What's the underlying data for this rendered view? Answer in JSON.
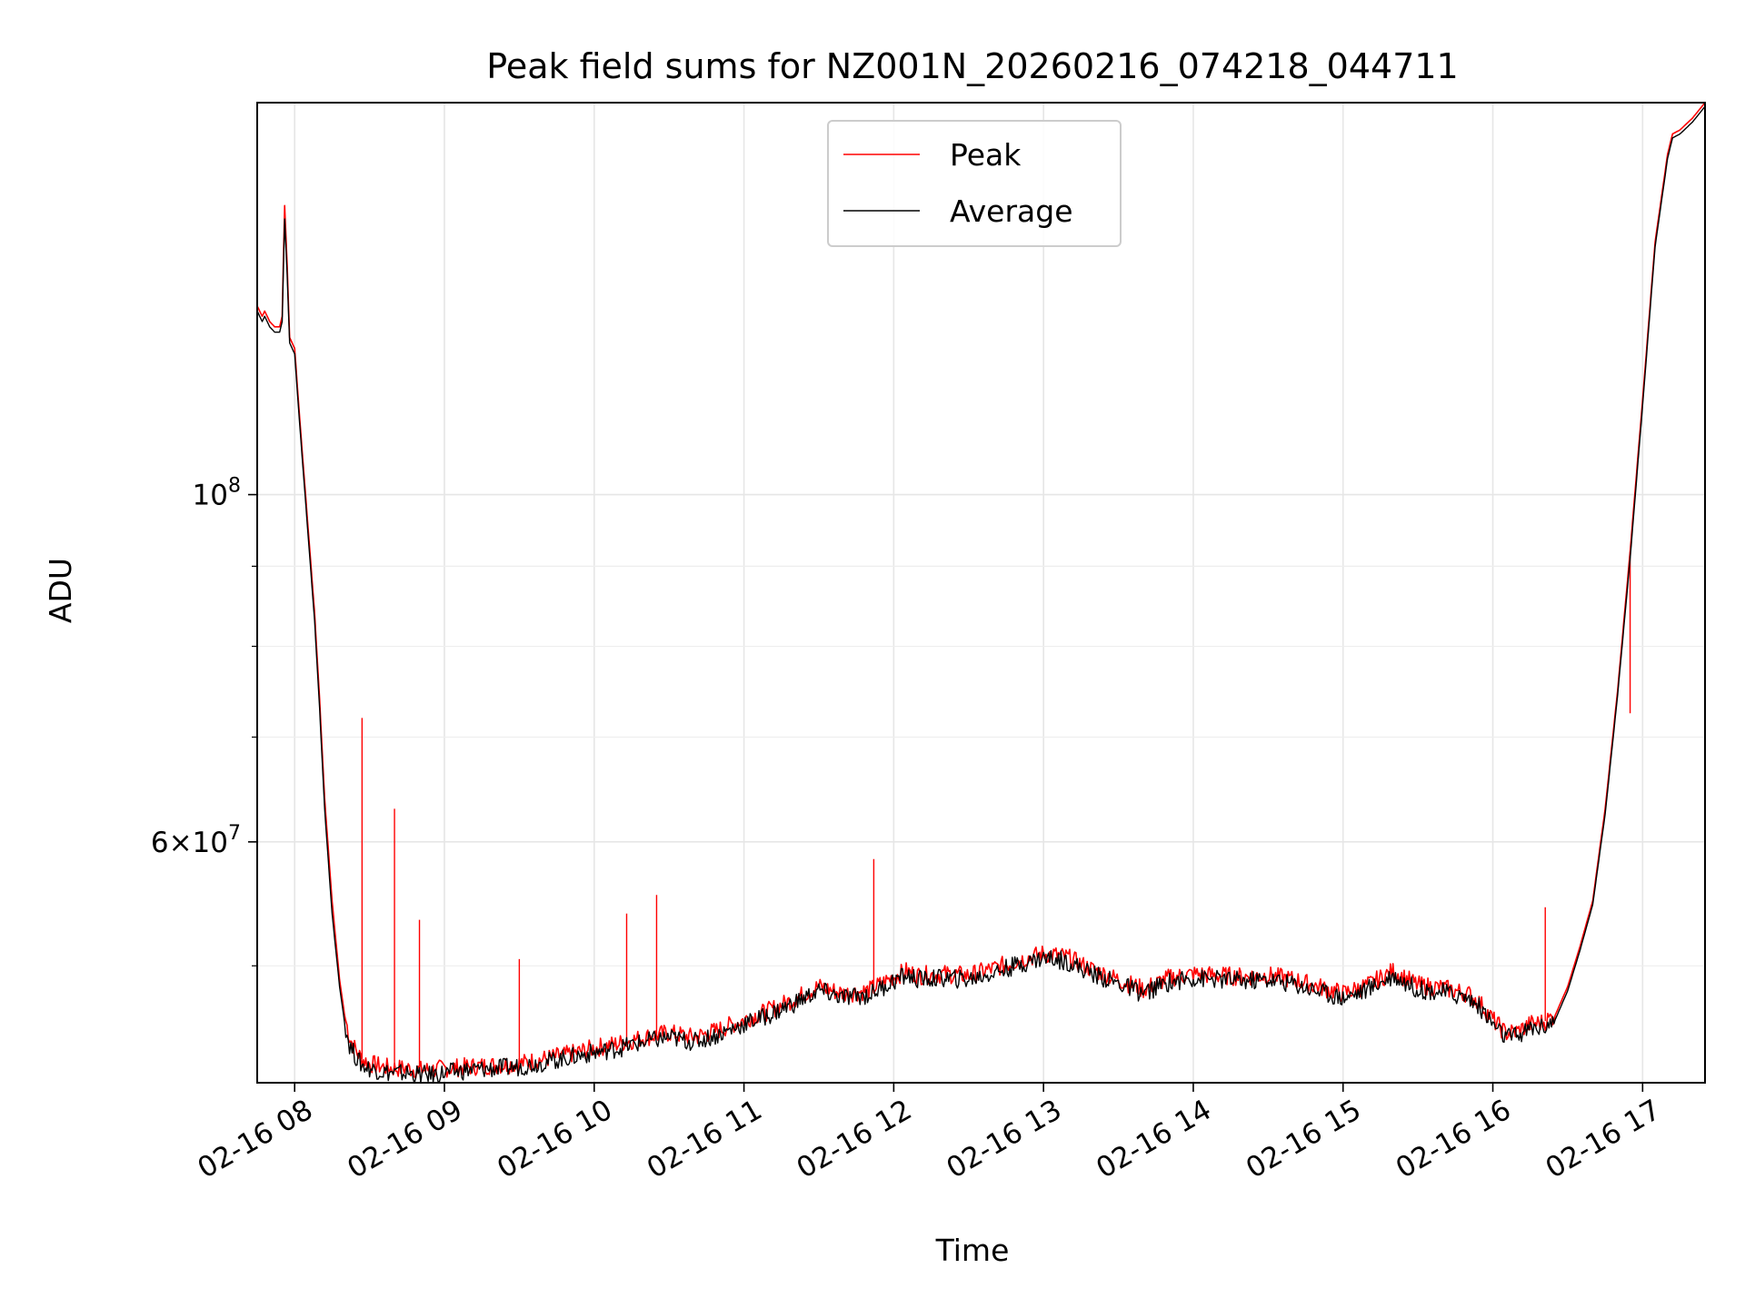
{
  "chart_data": {
    "type": "line",
    "title": "Peak field sums for NZ001N_20260216_074218_044711",
    "xlabel": "Time",
    "ylabel": "ADU",
    "yscale": "log",
    "grid": true,
    "legend_position": "top-center",
    "x_ticks": [
      "02-16 08",
      "02-16 09",
      "02-16 10",
      "02-16 11",
      "02-16 12",
      "02-16 13",
      "02-16 14",
      "02-16 15",
      "02-16 16",
      "02-16 17"
    ],
    "y_ticks": [
      {
        "value": 100000000,
        "base": "10",
        "exp": "8"
      },
      {
        "value": 60000000,
        "mant": "6",
        "base": "10",
        "exp": "7"
      }
    ],
    "xlim": [
      "02-16 07:45",
      "02-16 17:25"
    ],
    "ylim": [
      42100000,
      178000000
    ],
    "series": [
      {
        "name": "Peak",
        "color": "#ff0000",
        "x": [
          "07:45",
          "07:47",
          "07:48",
          "07:50",
          "07:52",
          "07:54",
          "07:55",
          "07:56",
          "07:57",
          "07:58",
          "08:00",
          "08:02",
          "08:05",
          "08:08",
          "08:10",
          "08:12",
          "08:15",
          "08:18",
          "08:20",
          "08:22",
          "08:25",
          "08:27",
          "08:30",
          "08:33",
          "08:35",
          "08:40",
          "08:45",
          "08:50",
          "08:55",
          "09:00",
          "09:10",
          "09:20",
          "09:30",
          "09:40",
          "09:50",
          "10:00",
          "10:10",
          "10:20",
          "10:30",
          "10:40",
          "10:50",
          "11:00",
          "11:10",
          "11:20",
          "11:30",
          "11:40",
          "11:50",
          "12:00",
          "12:05",
          "12:10",
          "12:20",
          "12:30",
          "12:40",
          "12:50",
          "13:00",
          "13:05",
          "13:10",
          "13:15",
          "13:20",
          "13:30",
          "13:40",
          "13:45",
          "13:50",
          "14:00",
          "14:10",
          "14:20",
          "14:30",
          "14:40",
          "14:50",
          "15:00",
          "15:10",
          "15:20",
          "15:30",
          "15:40",
          "15:50",
          "15:55",
          "16:00",
          "16:05",
          "16:10",
          "16:15",
          "16:20",
          "16:25",
          "16:30",
          "16:35",
          "16:40",
          "16:45",
          "16:50",
          "16:55",
          "17:00",
          "17:05",
          "17:10",
          "17:12",
          "17:15",
          "17:20",
          "17:25"
        ],
        "y": [
          132000000,
          130000000,
          131000000,
          129000000,
          128000000,
          128000000,
          130000000,
          153000000,
          140000000,
          126000000,
          124000000,
          112000000,
          97000000,
          84000000,
          74000000,
          64000000,
          55000000,
          49000000,
          46500000,
          45000000,
          44000000,
          43600000,
          43300000,
          43200000,
          43100000,
          43000000,
          43000000,
          42900000,
          42900000,
          43000000,
          43100000,
          43200000,
          43300000,
          43600000,
          43900000,
          44300000,
          44600000,
          45000000,
          45300000,
          45000000,
          45500000,
          46200000,
          46800000,
          47600000,
          48500000,
          48000000,
          48200000,
          49200000,
          49600000,
          49300000,
          49400000,
          49300000,
          49800000,
          50400000,
          50900000,
          50800000,
          50600000,
          50100000,
          49700000,
          49000000,
          48300000,
          48700000,
          49100000,
          49400000,
          49300000,
          49200000,
          49300000,
          49000000,
          48500000,
          48000000,
          48600000,
          49600000,
          48600000,
          48400000,
          48000000,
          47300000,
          46200000,
          45300000,
          45400000,
          45900000,
          46000000,
          46500000,
          48500000,
          51500000,
          55000000,
          63000000,
          75000000,
          92000000,
          115000000,
          145000000,
          165000000,
          170000000,
          171000000,
          174000000,
          178000000
        ],
        "spikes": [
          {
            "x": "08:27",
            "y": 72000000
          },
          {
            "x": "08:40",
            "y": 63000000
          },
          {
            "x": "08:50",
            "y": 53500000
          },
          {
            "x": "09:30",
            "y": 50500000
          },
          {
            "x": "10:13",
            "y": 54000000
          },
          {
            "x": "10:25",
            "y": 55500000
          },
          {
            "x": "11:52",
            "y": 58500000
          },
          {
            "x": "16:21",
            "y": 54500000
          },
          {
            "x": "16:55",
            "y": 72500000
          }
        ]
      },
      {
        "name": "Average",
        "color": "#000000",
        "x": [
          "07:45",
          "07:47",
          "07:48",
          "07:50",
          "07:52",
          "07:54",
          "07:55",
          "07:56",
          "07:57",
          "07:58",
          "08:00",
          "08:02",
          "08:05",
          "08:08",
          "08:10",
          "08:12",
          "08:15",
          "08:18",
          "08:20",
          "08:22",
          "08:25",
          "08:27",
          "08:30",
          "08:33",
          "08:35",
          "08:40",
          "08:45",
          "08:50",
          "08:55",
          "09:00",
          "09:10",
          "09:20",
          "09:30",
          "09:40",
          "09:50",
          "10:00",
          "10:10",
          "10:20",
          "10:30",
          "10:40",
          "10:50",
          "11:00",
          "11:10",
          "11:20",
          "11:30",
          "11:40",
          "11:50",
          "12:00",
          "12:05",
          "12:10",
          "12:20",
          "12:30",
          "12:40",
          "12:50",
          "13:00",
          "13:05",
          "13:10",
          "13:15",
          "13:20",
          "13:30",
          "13:40",
          "13:45",
          "13:50",
          "14:00",
          "14:10",
          "14:20",
          "14:30",
          "14:40",
          "14:50",
          "15:00",
          "15:10",
          "15:20",
          "15:30",
          "15:40",
          "15:50",
          "15:55",
          "16:00",
          "16:05",
          "16:10",
          "16:15",
          "16:20",
          "16:25",
          "16:30",
          "16:35",
          "16:40",
          "16:45",
          "16:50",
          "16:55",
          "17:00",
          "17:05",
          "17:10",
          "17:12",
          "17:15",
          "17:20",
          "17:25"
        ],
        "y": [
          131000000,
          129000000,
          130000000,
          128000000,
          127000000,
          127000000,
          129000000,
          150000000,
          138000000,
          125000000,
          123000000,
          111000000,
          96000000,
          83000000,
          73000000,
          63000000,
          54000000,
          48500000,
          46000000,
          44500000,
          43600000,
          43200000,
          43000000,
          42900000,
          42800000,
          42700000,
          42700000,
          42600000,
          42600000,
          42700000,
          42900000,
          43000000,
          43100000,
          43400000,
          43700000,
          44000000,
          44300000,
          44700000,
          45000000,
          44700000,
          45200000,
          45900000,
          46500000,
          47300000,
          48200000,
          47700000,
          47900000,
          48900000,
          49300000,
          49000000,
          49100000,
          49000000,
          49500000,
          50100000,
          50600000,
          50500000,
          50300000,
          49800000,
          49400000,
          48700000,
          48000000,
          48400000,
          48800000,
          49100000,
          49000000,
          48900000,
          49000000,
          48700000,
          48200000,
          47700000,
          48300000,
          49300000,
          48300000,
          48100000,
          47700000,
          47000000,
          45900000,
          45000000,
          45100000,
          45600000,
          45700000,
          46200000,
          48200000,
          51200000,
          54700000,
          62500000,
          74500000,
          91000000,
          114000000,
          144000000,
          164000000,
          169000000,
          170000000,
          173000000,
          177000000
        ]
      }
    ]
  }
}
